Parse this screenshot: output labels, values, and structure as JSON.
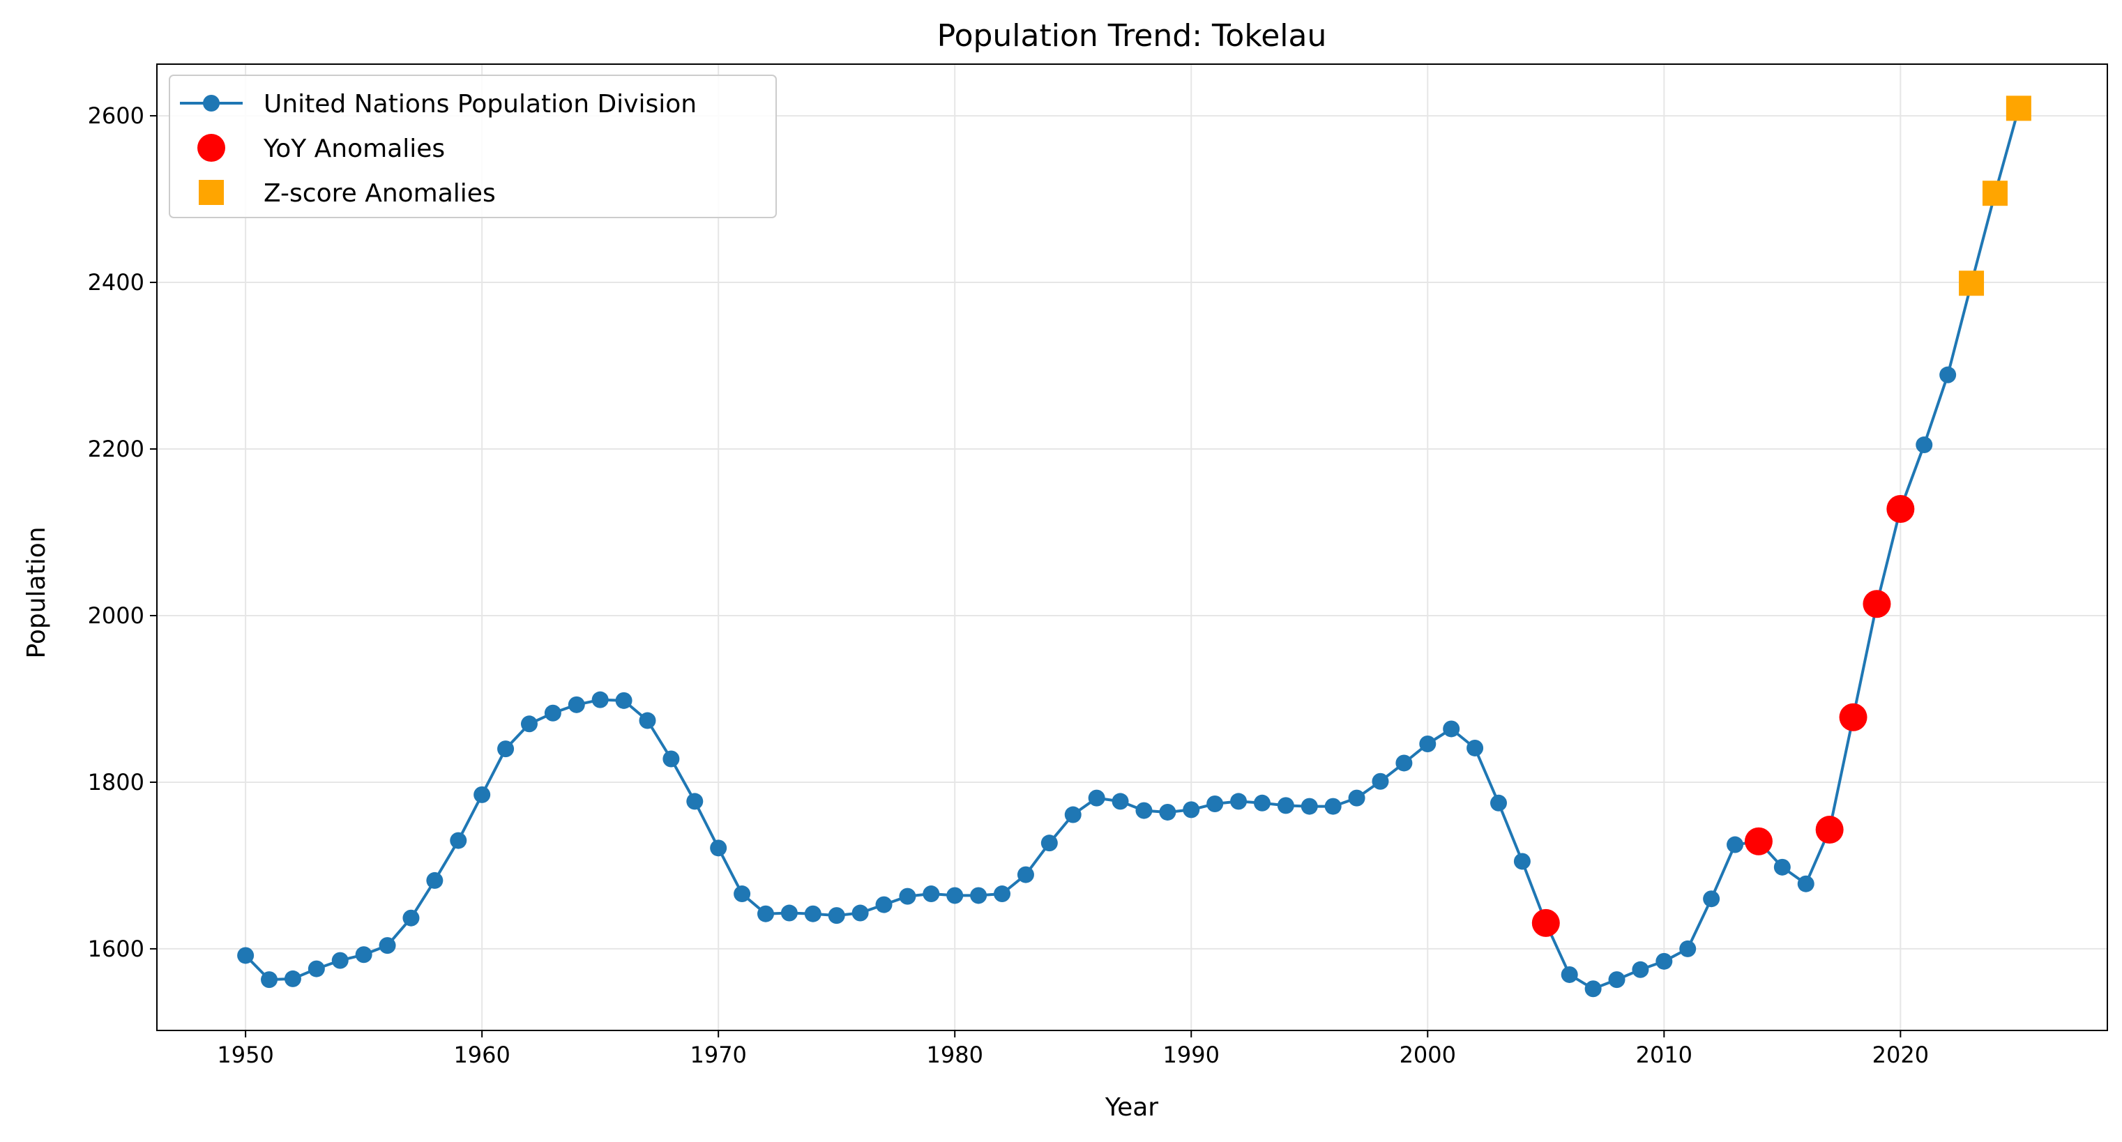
{
  "chart_data": {
    "type": "line",
    "title": "Population Trend: Tokelau",
    "xlabel": "Year",
    "ylabel": "Population",
    "xlim": [
      1946.25,
      2028.75
    ],
    "ylim": [
      1502,
      2662
    ],
    "xticks": [
      1950,
      1960,
      1970,
      1980,
      1990,
      2000,
      2010,
      2020
    ],
    "yticks": [
      1600,
      1800,
      2000,
      2200,
      2400,
      2600
    ],
    "grid": true,
    "legend_position": "top-left",
    "series": [
      {
        "name": "United Nations Population Division",
        "style": "line-with-circle-markers",
        "color": "#1f77b4",
        "x": [
          1950,
          1951,
          1952,
          1953,
          1954,
          1955,
          1956,
          1957,
          1958,
          1959,
          1960,
          1961,
          1962,
          1963,
          1964,
          1965,
          1966,
          1967,
          1968,
          1969,
          1970,
          1971,
          1972,
          1973,
          1974,
          1975,
          1976,
          1977,
          1978,
          1979,
          1980,
          1981,
          1982,
          1983,
          1984,
          1985,
          1986,
          1987,
          1988,
          1989,
          1990,
          1991,
          1992,
          1993,
          1994,
          1995,
          1996,
          1997,
          1998,
          1999,
          2000,
          2001,
          2002,
          2003,
          2004,
          2005,
          2006,
          2007,
          2008,
          2009,
          2010,
          2011,
          2012,
          2013,
          2014,
          2015,
          2016,
          2017,
          2018,
          2019,
          2020,
          2021,
          2022,
          2023,
          2024,
          2025
        ],
        "values": [
          1592,
          1563,
          1564,
          1576,
          1586,
          1593,
          1604,
          1637,
          1682,
          1730,
          1785,
          1840,
          1870,
          1883,
          1893,
          1899,
          1898,
          1874,
          1828,
          1777,
          1721,
          1666,
          1642,
          1643,
          1642,
          1640,
          1643,
          1653,
          1663,
          1666,
          1664,
          1664,
          1666,
          1689,
          1727,
          1761,
          1781,
          1777,
          1766,
          1764,
          1767,
          1774,
          1777,
          1775,
          1772,
          1771,
          1771,
          1781,
          1801,
          1823,
          1846,
          1864,
          1841,
          1775,
          1705,
          1631,
          1569,
          1552,
          1563,
          1575,
          1585,
          1600,
          1660,
          1725,
          1729,
          1698,
          1678,
          1743,
          1878,
          2014,
          2128,
          2205,
          2289,
          2399,
          2507,
          2609
        ]
      },
      {
        "name": "YoY Anomalies",
        "style": "scatter-circle",
        "color": "#ff0000",
        "x": [
          2005,
          2014,
          2017,
          2018,
          2019,
          2020
        ],
        "values": [
          1631,
          1729,
          1743,
          1878,
          2014,
          2128
        ]
      },
      {
        "name": "Z-score Anomalies",
        "style": "scatter-square",
        "color": "#ffa500",
        "x": [
          2023,
          2024,
          2025
        ],
        "values": [
          2399,
          2507,
          2609
        ]
      }
    ]
  }
}
